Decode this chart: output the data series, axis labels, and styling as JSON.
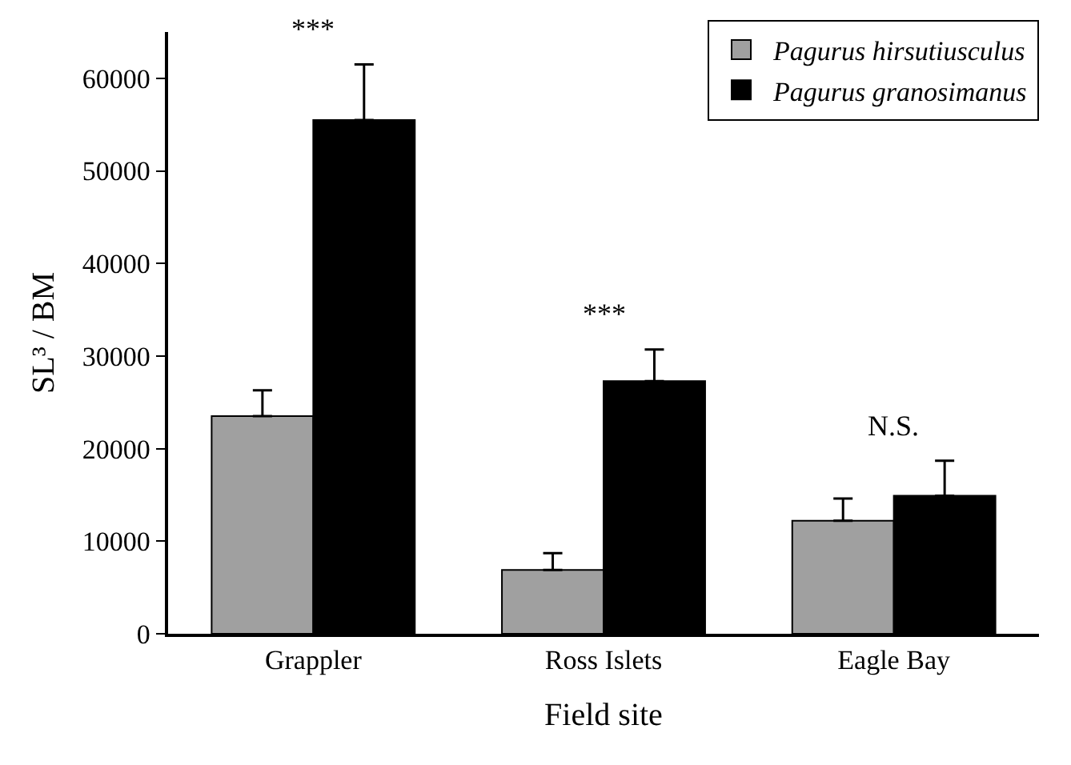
{
  "chart_data": {
    "type": "bar",
    "xlabel": "Field site",
    "ylabel": "SL³ / BM",
    "categories": [
      "Grappler",
      "Ross Islets",
      "Eagle Bay"
    ],
    "series": [
      {
        "name": "Pagurus hirsutiusculus",
        "color": "#a0a0a0",
        "values": [
          23500,
          6900,
          12200
        ],
        "errors": [
          [
            23500,
            26300
          ],
          [
            6900,
            8700
          ],
          [
            12200,
            14600
          ]
        ]
      },
      {
        "name": "Pagurus granosimanus",
        "color": "#000000",
        "values": [
          55500,
          27300,
          14900
        ],
        "errors": [
          [
            55500,
            61500
          ],
          [
            27300,
            30700
          ],
          [
            14900,
            18700
          ]
        ]
      }
    ],
    "ylim": [
      0,
      65000
    ],
    "yticks": [
      0,
      10000,
      20000,
      30000,
      40000,
      50000,
      60000
    ],
    "annotations": [
      "***",
      "***",
      "N.S."
    ],
    "legend": "top right",
    "grid": false
  }
}
